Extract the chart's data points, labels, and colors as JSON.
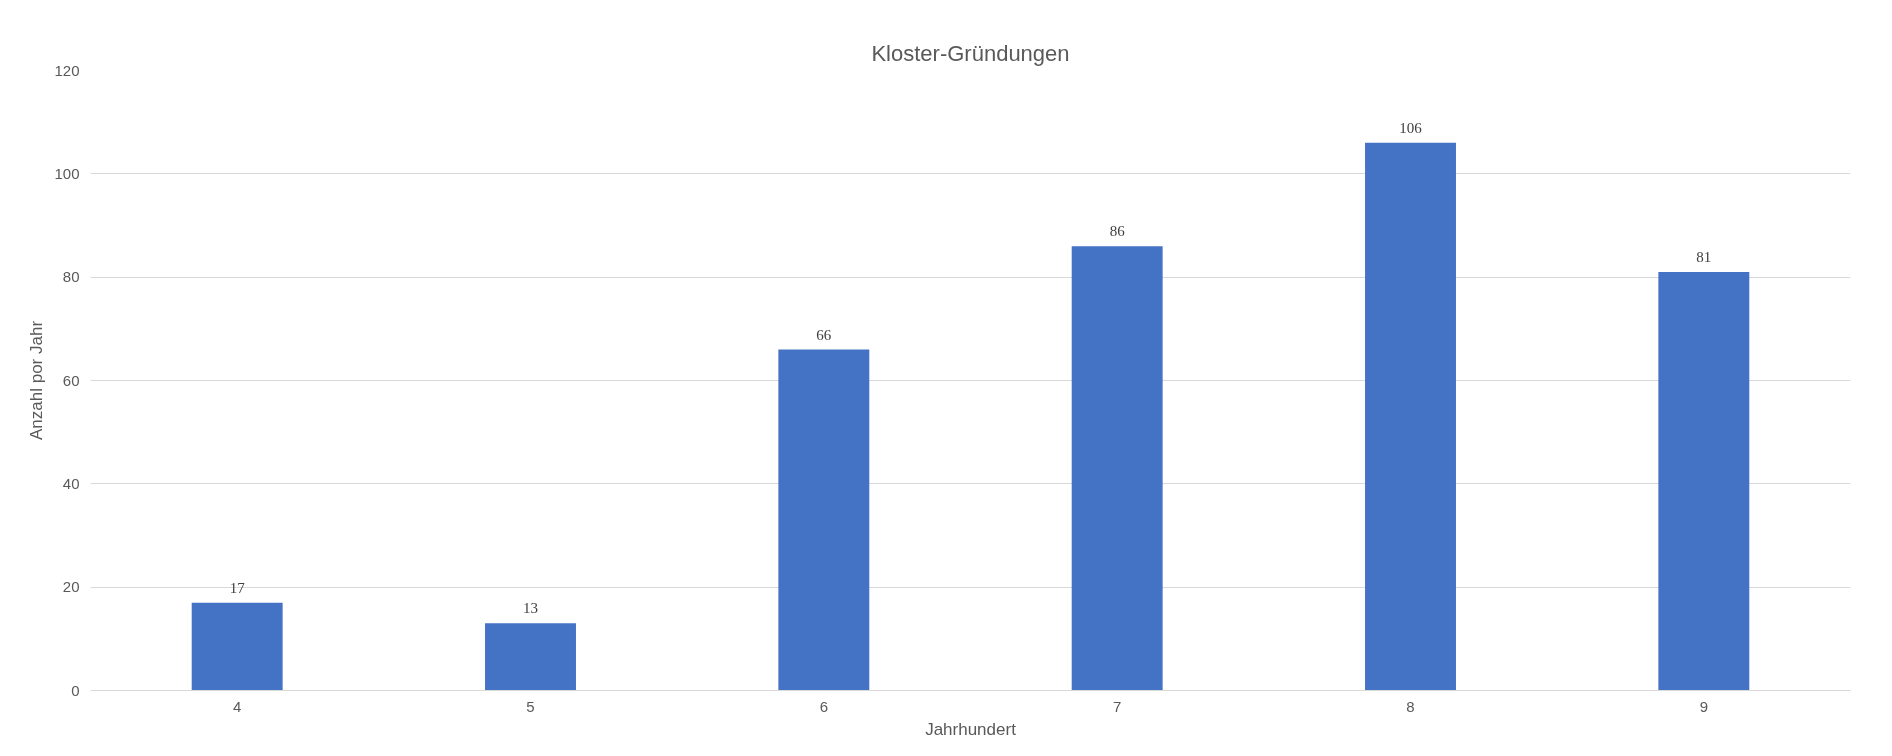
{
  "chart_data": {
    "type": "bar",
    "title": "Kloster-Gründungen",
    "xlabel": "Jahrhundert",
    "ylabel": "Anzahl por Jahr",
    "categories": [
      "4",
      "5",
      "6",
      "7",
      "8",
      "9"
    ],
    "values": [
      17,
      13,
      66,
      86,
      106,
      81
    ],
    "color": "#4472c4",
    "ylim": [
      0,
      120
    ],
    "yticks": [
      0,
      20,
      40,
      60,
      80,
      100,
      120
    ],
    "grid": "y",
    "data_labels": true
  }
}
